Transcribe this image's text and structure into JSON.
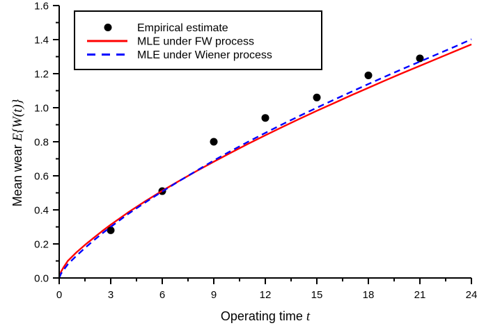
{
  "figure": {
    "background": "#ffffff",
    "axis_color": "#000000"
  },
  "chart_data": {
    "type": "line",
    "title": "",
    "xlabel_text": "Operating time",
    "xlabel_var": "t",
    "ylabel_text": "Mean wear",
    "ylabel_math": "E{W(t)}",
    "xlim": [
      0,
      24
    ],
    "ylim": [
      0,
      1.6
    ],
    "grid": false,
    "x_major_ticks": [
      0,
      3,
      6,
      9,
      12,
      15,
      18,
      21,
      24
    ],
    "x_major_tick_labels": [
      "0",
      "3",
      "6",
      "9",
      "12",
      "15",
      "18",
      "21",
      "24"
    ],
    "x_minor_ticks": [
      1.5,
      4.5,
      7.5,
      10.5,
      13.5,
      16.5,
      19.5,
      22.5
    ],
    "y_major_ticks": [
      0.0,
      0.2,
      0.4,
      0.6,
      0.8,
      1.0,
      1.2,
      1.4,
      1.6
    ],
    "y_major_tick_labels": [
      "0.0",
      "0.2",
      "0.4",
      "0.6",
      "0.8",
      "1.0",
      "1.2",
      "1.4",
      "1.6"
    ],
    "y_minor_ticks": [
      0.1,
      0.3,
      0.5,
      0.7,
      0.9,
      1.1,
      1.3,
      1.5
    ],
    "legend": {
      "position": "upper-left",
      "border": true,
      "border_color": "#000000",
      "fill": "#ffffff"
    },
    "series": [
      {
        "name": "Empirical estimate",
        "kind": "scatter",
        "marker": "circle",
        "color": "#000000",
        "x": [
          3,
          6,
          9,
          12,
          15,
          18,
          21
        ],
        "y": [
          0.28,
          0.51,
          0.8,
          0.94,
          1.06,
          1.19,
          1.29
        ]
      },
      {
        "name": "MLE under FW process",
        "kind": "line",
        "dash": "solid",
        "color": "#ff0000",
        "x": [
          0,
          0.1,
          0.25,
          0.5,
          1,
          1.5,
          2,
          2.5,
          3,
          4,
          5,
          6,
          7,
          8,
          9,
          10,
          11,
          12,
          13,
          14,
          15,
          16,
          17,
          18,
          19,
          20,
          21,
          22,
          23,
          24
        ],
        "y": [
          0,
          0.035,
          0.062,
          0.1,
          0.15,
          0.194,
          0.235,
          0.275,
          0.313,
          0.384,
          0.45,
          0.512,
          0.571,
          0.628,
          0.683,
          0.736,
          0.788,
          0.838,
          0.887,
          0.935,
          0.982,
          1.027,
          1.073,
          1.117,
          1.161,
          1.204,
          1.246,
          1.288,
          1.33,
          1.372
        ]
      },
      {
        "name": "MLE under Wiener process",
        "kind": "line",
        "dash": "dashed",
        "color": "#0000ff",
        "x": [
          0,
          0.1,
          0.25,
          0.5,
          1,
          1.5,
          2,
          2.5,
          3,
          4,
          5,
          6,
          7,
          8,
          9,
          10,
          11,
          12,
          13,
          14,
          15,
          16,
          17,
          18,
          19,
          20,
          21,
          22,
          23,
          24
        ],
        "y": [
          0,
          0.024,
          0.046,
          0.08,
          0.13,
          0.176,
          0.22,
          0.261,
          0.3,
          0.375,
          0.443,
          0.508,
          0.57,
          0.63,
          0.69,
          0.746,
          0.8,
          0.852,
          0.903,
          0.952,
          1.0,
          1.047,
          1.093,
          1.139,
          1.184,
          1.228,
          1.271,
          1.314,
          1.357,
          1.402
        ]
      }
    ]
  }
}
